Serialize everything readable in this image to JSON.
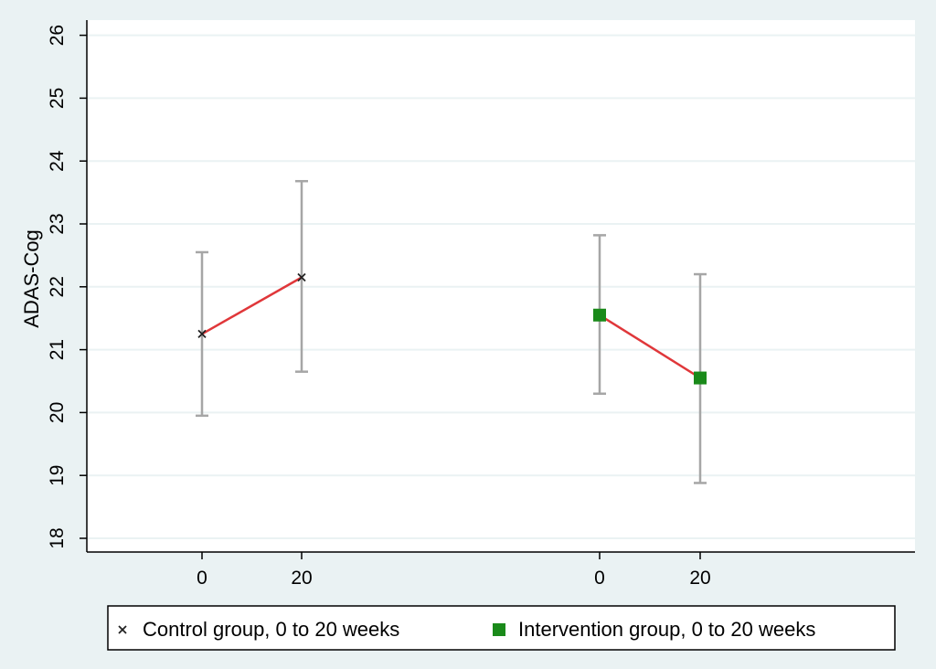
{
  "colors": {
    "page_background": "#eaf2f3",
    "plot_background": "#ffffff",
    "gridline": "#eaf2f3",
    "connector": "#e0373a",
    "error_bar": "#a6a6a6",
    "intervention_marker": "#1a8a1a",
    "control_marker": "#222222"
  },
  "chart_data": {
    "type": "scatter",
    "title": "",
    "xlabel": "",
    "ylabel": "ADAS-Cog",
    "ylim": [
      18,
      26
    ],
    "yticks": [
      18,
      19,
      20,
      21,
      22,
      23,
      24,
      25,
      26
    ],
    "grid": true,
    "legend_position": "bottom",
    "series": [
      {
        "name": "Control group, 0 to 20 weeks",
        "marker": "x",
        "points": [
          {
            "x": "0",
            "y": 21.25,
            "ci_low": 19.95,
            "ci_high": 22.55
          },
          {
            "x": "20",
            "y": 22.15,
            "ci_low": 20.65,
            "ci_high": 23.68
          }
        ]
      },
      {
        "name": "Intervention group, 0 to 20 weeks",
        "marker": "square",
        "points": [
          {
            "x": "0",
            "y": 21.55,
            "ci_low": 20.3,
            "ci_high": 22.82
          },
          {
            "x": "20",
            "y": 20.55,
            "ci_low": 18.88,
            "ci_high": 22.2
          }
        ]
      }
    ]
  }
}
